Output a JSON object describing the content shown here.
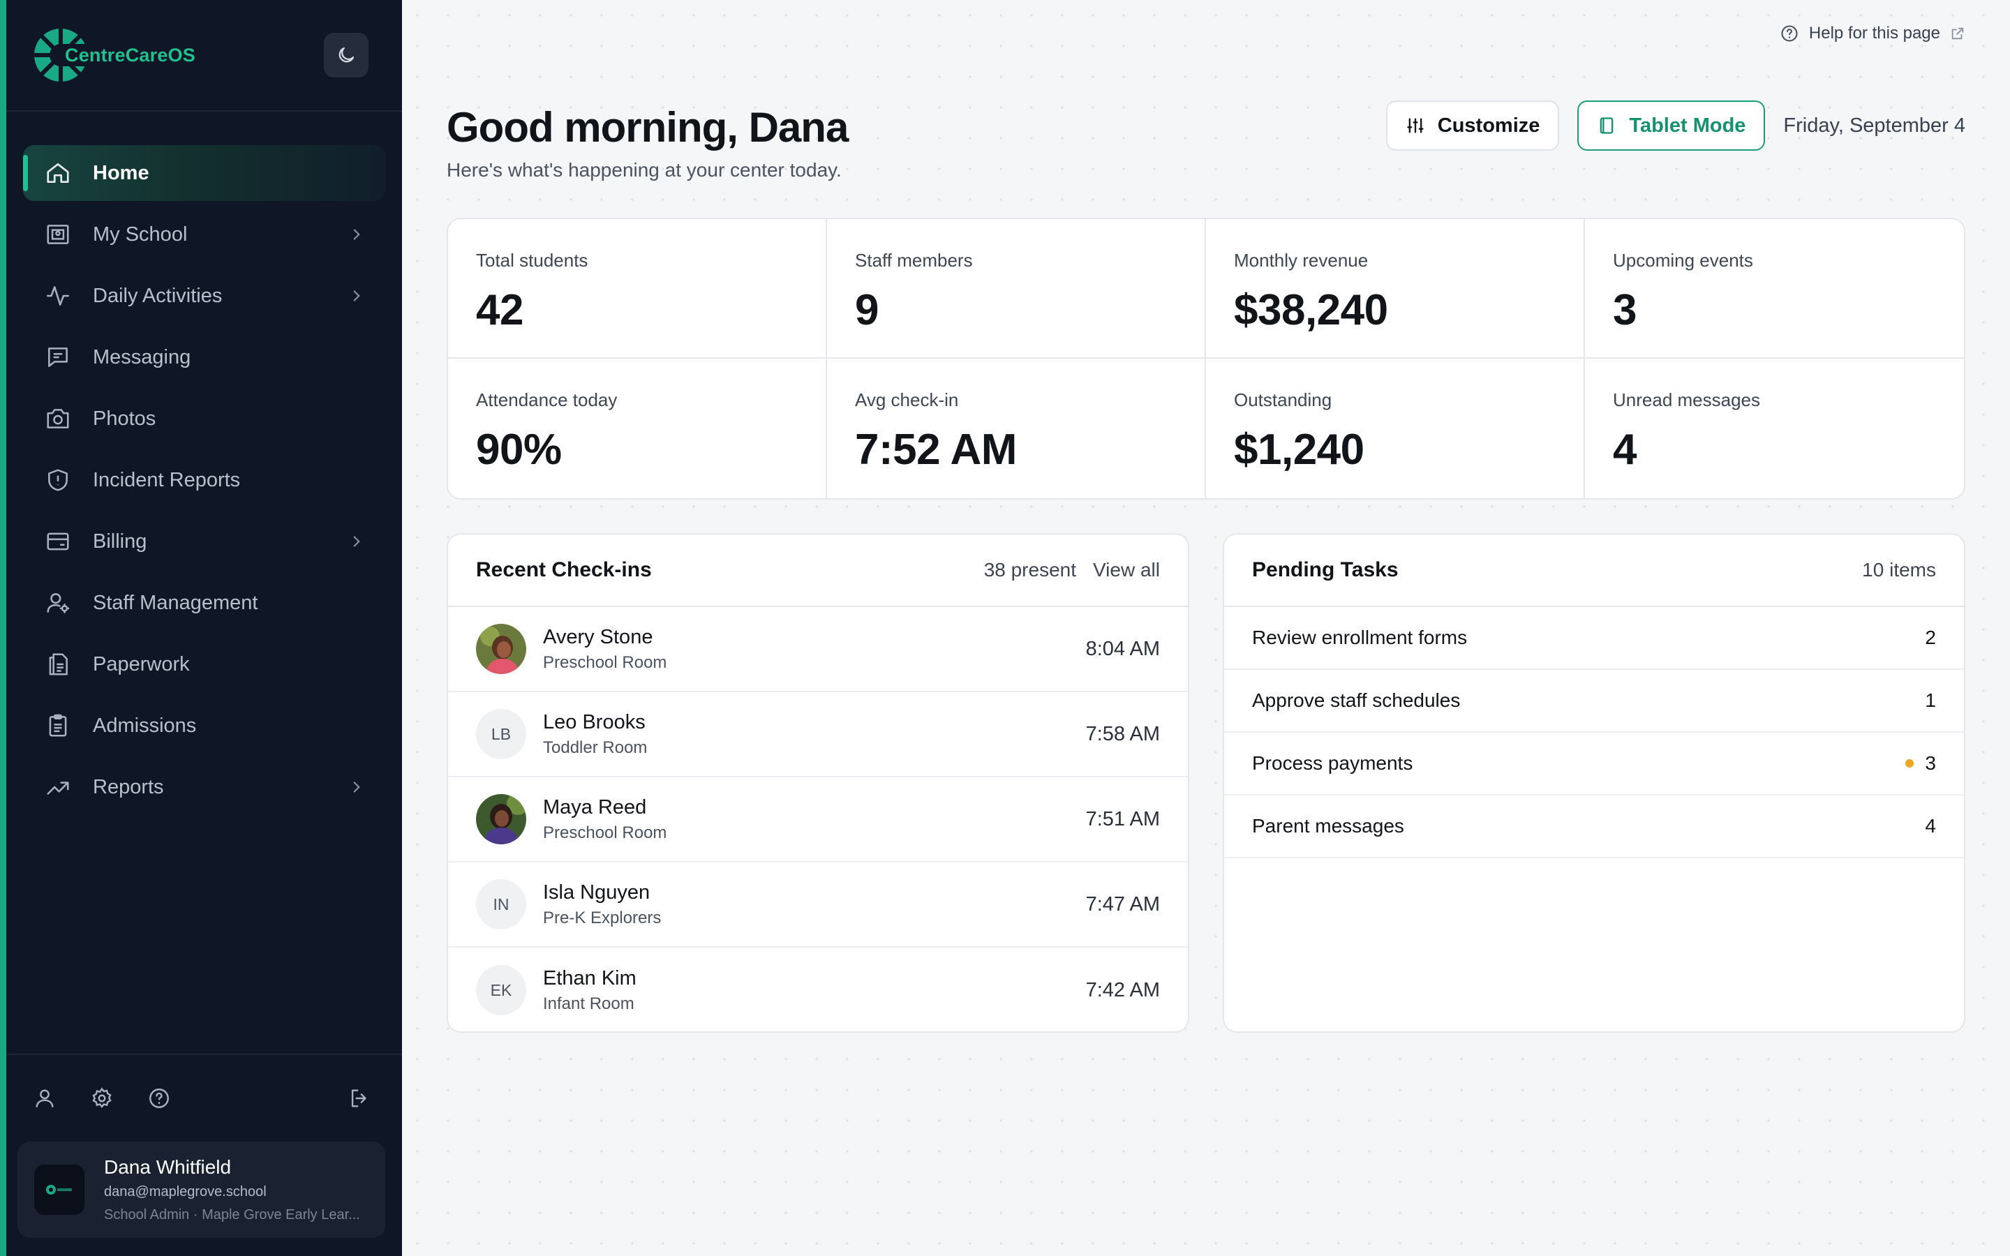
{
  "app": {
    "name": "CentreCareOS"
  },
  "sidebar": {
    "items": [
      {
        "label": "Home",
        "icon": "home-icon",
        "active": true,
        "has_submenu": false
      },
      {
        "label": "My School",
        "icon": "school-icon",
        "active": false,
        "has_submenu": true
      },
      {
        "label": "Daily Activities",
        "icon": "activity-icon",
        "active": false,
        "has_submenu": true
      },
      {
        "label": "Messaging",
        "icon": "message-icon",
        "active": false,
        "has_submenu": false
      },
      {
        "label": "Photos",
        "icon": "camera-icon",
        "active": false,
        "has_submenu": false
      },
      {
        "label": "Incident Reports",
        "icon": "shield-icon",
        "active": false,
        "has_submenu": false
      },
      {
        "label": "Billing",
        "icon": "credit-card-icon",
        "active": false,
        "has_submenu": true
      },
      {
        "label": "Staff Management",
        "icon": "user-cog-icon",
        "active": false,
        "has_submenu": false
      },
      {
        "label": "Paperwork",
        "icon": "document-icon",
        "active": false,
        "has_submenu": false
      },
      {
        "label": "Admissions",
        "icon": "clipboard-icon",
        "active": false,
        "has_submenu": false
      },
      {
        "label": "Reports",
        "icon": "trending-up-icon",
        "active": false,
        "has_submenu": true
      }
    ]
  },
  "user": {
    "name": "Dana Whitfield",
    "email": "dana@maplegrove.school",
    "role": "School Admin · Maple Grove Early Lear..."
  },
  "help": {
    "label": "Help for this page"
  },
  "header": {
    "title": "Good morning, Dana",
    "subtitle": "Here's what's happening at your center today.",
    "customize_label": "Customize",
    "tablet_label": "Tablet Mode",
    "date": "Friday, September 4"
  },
  "stats": [
    {
      "label": "Total students",
      "value": "42"
    },
    {
      "label": "Staff members",
      "value": "9"
    },
    {
      "label": "Monthly revenue",
      "value": "$38,240"
    },
    {
      "label": "Upcoming events",
      "value": "3"
    },
    {
      "label": "Attendance today",
      "value": "90%"
    },
    {
      "label": "Avg check-in",
      "value": "7:52 AM"
    },
    {
      "label": "Outstanding",
      "value": "$1,240"
    },
    {
      "label": "Unread messages",
      "value": "4"
    }
  ],
  "checkins": {
    "title": "Recent Check-ins",
    "present": "38 present",
    "view_all": "View all",
    "rows": [
      {
        "name": "Avery Stone",
        "room": "Preschool Room",
        "time": "8:04 AM",
        "initials": "",
        "photo": true
      },
      {
        "name": "Leo Brooks",
        "room": "Toddler Room",
        "time": "7:58 AM",
        "initials": "LB",
        "photo": false
      },
      {
        "name": "Maya Reed",
        "room": "Preschool Room",
        "time": "7:51 AM",
        "initials": "",
        "photo": true
      },
      {
        "name": "Isla Nguyen",
        "room": "Pre-K Explorers",
        "time": "7:47 AM",
        "initials": "IN",
        "photo": false
      },
      {
        "name": "Ethan Kim",
        "room": "Infant Room",
        "time": "7:42 AM",
        "initials": "EK",
        "photo": false
      }
    ]
  },
  "tasks": {
    "title": "Pending Tasks",
    "count": "10 items",
    "rows": [
      {
        "label": "Review enrollment forms",
        "count": "2",
        "flag": false
      },
      {
        "label": "Approve staff schedules",
        "count": "1",
        "flag": false
      },
      {
        "label": "Process payments",
        "count": "3",
        "flag": true
      },
      {
        "label": "Parent messages",
        "count": "4",
        "flag": false
      }
    ]
  },
  "colors": {
    "accent": "#1fc193",
    "sidebar_bg": "#0f1626",
    "warning_dot": "#f0a51f"
  }
}
